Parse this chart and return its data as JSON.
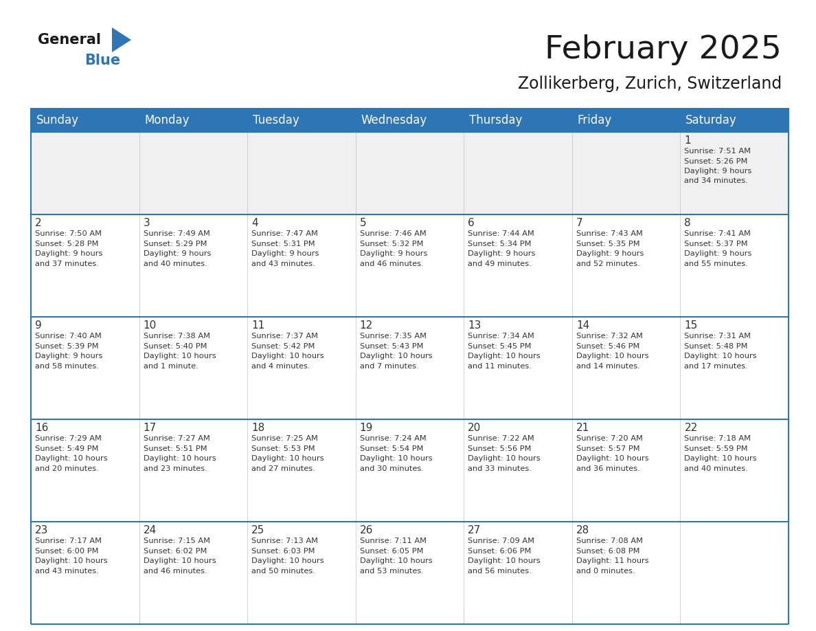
{
  "title": "February 2025",
  "subtitle": "Zollikerberg, Zurich, Switzerland",
  "header_color": "#2E75B6",
  "header_text_color": "#FFFFFF",
  "cell_bg_color": "#FFFFFF",
  "row1_bg_color": "#F0F0F0",
  "border_color": "#2E75B6",
  "separator_color": "#2E75B6",
  "text_color": "#333333",
  "days_of_week": [
    "Sunday",
    "Monday",
    "Tuesday",
    "Wednesday",
    "Thursday",
    "Friday",
    "Saturday"
  ],
  "calendar_data": [
    [
      null,
      null,
      null,
      null,
      null,
      null,
      {
        "day": "1",
        "sunrise": "7:51 AM",
        "sunset": "5:26 PM",
        "daylight_line1": "9 hours",
        "daylight_line2": "and 34 minutes."
      }
    ],
    [
      {
        "day": "2",
        "sunrise": "7:50 AM",
        "sunset": "5:28 PM",
        "daylight_line1": "9 hours",
        "daylight_line2": "and 37 minutes."
      },
      {
        "day": "3",
        "sunrise": "7:49 AM",
        "sunset": "5:29 PM",
        "daylight_line1": "9 hours",
        "daylight_line2": "and 40 minutes."
      },
      {
        "day": "4",
        "sunrise": "7:47 AM",
        "sunset": "5:31 PM",
        "daylight_line1": "9 hours",
        "daylight_line2": "and 43 minutes."
      },
      {
        "day": "5",
        "sunrise": "7:46 AM",
        "sunset": "5:32 PM",
        "daylight_line1": "9 hours",
        "daylight_line2": "and 46 minutes."
      },
      {
        "day": "6",
        "sunrise": "7:44 AM",
        "sunset": "5:34 PM",
        "daylight_line1": "9 hours",
        "daylight_line2": "and 49 minutes."
      },
      {
        "day": "7",
        "sunrise": "7:43 AM",
        "sunset": "5:35 PM",
        "daylight_line1": "9 hours",
        "daylight_line2": "and 52 minutes."
      },
      {
        "day": "8",
        "sunrise": "7:41 AM",
        "sunset": "5:37 PM",
        "daylight_line1": "9 hours",
        "daylight_line2": "and 55 minutes."
      }
    ],
    [
      {
        "day": "9",
        "sunrise": "7:40 AM",
        "sunset": "5:39 PM",
        "daylight_line1": "9 hours",
        "daylight_line2": "and 58 minutes."
      },
      {
        "day": "10",
        "sunrise": "7:38 AM",
        "sunset": "5:40 PM",
        "daylight_line1": "10 hours",
        "daylight_line2": "and 1 minute."
      },
      {
        "day": "11",
        "sunrise": "7:37 AM",
        "sunset": "5:42 PM",
        "daylight_line1": "10 hours",
        "daylight_line2": "and 4 minutes."
      },
      {
        "day": "12",
        "sunrise": "7:35 AM",
        "sunset": "5:43 PM",
        "daylight_line1": "10 hours",
        "daylight_line2": "and 7 minutes."
      },
      {
        "day": "13",
        "sunrise": "7:34 AM",
        "sunset": "5:45 PM",
        "daylight_line1": "10 hours",
        "daylight_line2": "and 11 minutes."
      },
      {
        "day": "14",
        "sunrise": "7:32 AM",
        "sunset": "5:46 PM",
        "daylight_line1": "10 hours",
        "daylight_line2": "and 14 minutes."
      },
      {
        "day": "15",
        "sunrise": "7:31 AM",
        "sunset": "5:48 PM",
        "daylight_line1": "10 hours",
        "daylight_line2": "and 17 minutes."
      }
    ],
    [
      {
        "day": "16",
        "sunrise": "7:29 AM",
        "sunset": "5:49 PM",
        "daylight_line1": "10 hours",
        "daylight_line2": "and 20 minutes."
      },
      {
        "day": "17",
        "sunrise": "7:27 AM",
        "sunset": "5:51 PM",
        "daylight_line1": "10 hours",
        "daylight_line2": "and 23 minutes."
      },
      {
        "day": "18",
        "sunrise": "7:25 AM",
        "sunset": "5:53 PM",
        "daylight_line1": "10 hours",
        "daylight_line2": "and 27 minutes."
      },
      {
        "day": "19",
        "sunrise": "7:24 AM",
        "sunset": "5:54 PM",
        "daylight_line1": "10 hours",
        "daylight_line2": "and 30 minutes."
      },
      {
        "day": "20",
        "sunrise": "7:22 AM",
        "sunset": "5:56 PM",
        "daylight_line1": "10 hours",
        "daylight_line2": "and 33 minutes."
      },
      {
        "day": "21",
        "sunrise": "7:20 AM",
        "sunset": "5:57 PM",
        "daylight_line1": "10 hours",
        "daylight_line2": "and 36 minutes."
      },
      {
        "day": "22",
        "sunrise": "7:18 AM",
        "sunset": "5:59 PM",
        "daylight_line1": "10 hours",
        "daylight_line2": "and 40 minutes."
      }
    ],
    [
      {
        "day": "23",
        "sunrise": "7:17 AM",
        "sunset": "6:00 PM",
        "daylight_line1": "10 hours",
        "daylight_line2": "and 43 minutes."
      },
      {
        "day": "24",
        "sunrise": "7:15 AM",
        "sunset": "6:02 PM",
        "daylight_line1": "10 hours",
        "daylight_line2": "and 46 minutes."
      },
      {
        "day": "25",
        "sunrise": "7:13 AM",
        "sunset": "6:03 PM",
        "daylight_line1": "10 hours",
        "daylight_line2": "and 50 minutes."
      },
      {
        "day": "26",
        "sunrise": "7:11 AM",
        "sunset": "6:05 PM",
        "daylight_line1": "10 hours",
        "daylight_line2": "and 53 minutes."
      },
      {
        "day": "27",
        "sunrise": "7:09 AM",
        "sunset": "6:06 PM",
        "daylight_line1": "10 hours",
        "daylight_line2": "and 56 minutes."
      },
      {
        "day": "28",
        "sunrise": "7:08 AM",
        "sunset": "6:08 PM",
        "daylight_line1": "11 hours",
        "daylight_line2": "and 0 minutes."
      },
      null
    ]
  ],
  "logo_color_general": "#1A1A1A",
  "logo_color_blue": "#2E75B6",
  "title_fontsize": 34,
  "subtitle_fontsize": 17,
  "header_fontsize": 12,
  "day_num_fontsize": 11,
  "cell_text_fontsize": 8.2
}
